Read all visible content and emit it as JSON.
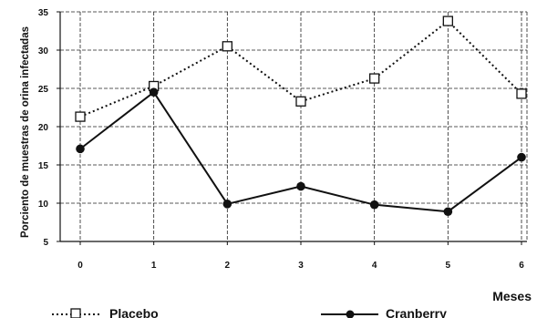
{
  "chart_data": {
    "type": "line",
    "x": [
      0,
      1,
      2,
      3,
      4,
      5,
      6
    ],
    "x_tick_labels": [
      "0",
      "1",
      "2",
      "3",
      "4",
      "5",
      "6"
    ],
    "y_tick_labels": [
      "5",
      "10",
      "15",
      "20",
      "25",
      "30",
      "35"
    ],
    "ylim": [
      5,
      35
    ],
    "xlabel": "Meses",
    "ylabel": "Porciento de muestras de orina infectadas",
    "grid": true,
    "legend_position": "bottom",
    "series": [
      {
        "name": "Placebo",
        "values": [
          21.3,
          25.3,
          30.5,
          23.3,
          26.3,
          33.8,
          24.3
        ],
        "line_style": "dotted",
        "marker": "open-square",
        "color": "#111111"
      },
      {
        "name": "Cranberry",
        "values": [
          17.1,
          24.5,
          9.9,
          12.2,
          9.8,
          8.9,
          16.0
        ],
        "line_style": "solid",
        "marker": "filled-circle",
        "color": "#111111"
      }
    ]
  }
}
